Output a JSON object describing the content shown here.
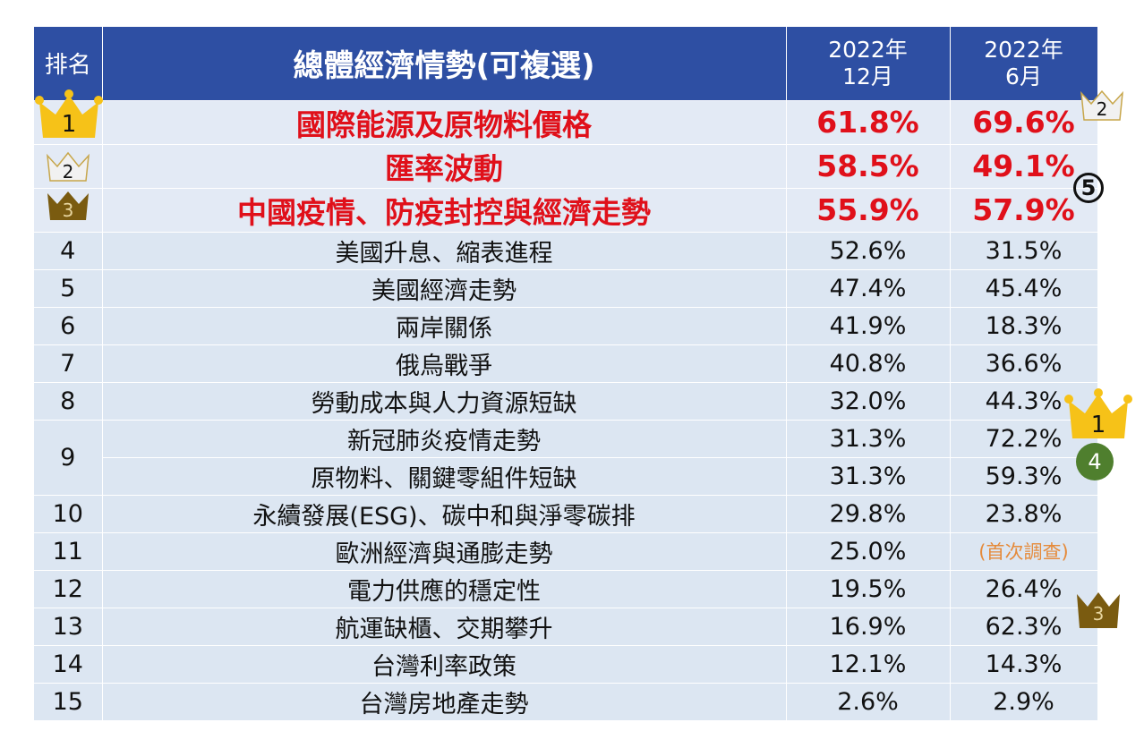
{
  "header": {
    "rank": "排名",
    "title": "總體經濟情勢(可複選)",
    "col_dec_year": "2022年",
    "col_dec_month": "12月",
    "col_jun_year": "2022年",
    "col_jun_month": "6月"
  },
  "rows": [
    {
      "rank": "1",
      "item": "國際能源及原物料價格",
      "dec": "61.8%",
      "jun": "69.6%"
    },
    {
      "rank": "2",
      "item": "匯率波動",
      "dec": "58.5%",
      "jun": "49.1%"
    },
    {
      "rank": "3",
      "item": "中國疫情、防疫封控與經濟走勢",
      "dec": "55.9%",
      "jun": "57.9%"
    },
    {
      "rank": "4",
      "item": "美國升息、縮表進程",
      "dec": "52.6%",
      "jun": "31.5%"
    },
    {
      "rank": "5",
      "item": "美國經濟走勢",
      "dec": "47.4%",
      "jun": "45.4%"
    },
    {
      "rank": "6",
      "item": "兩岸關係",
      "dec": "41.9%",
      "jun": "18.3%"
    },
    {
      "rank": "7",
      "item": "俄烏戰爭",
      "dec": "40.8%",
      "jun": "36.6%"
    },
    {
      "rank": "8",
      "item": "勞動成本與人力資源短缺",
      "dec": "32.0%",
      "jun": "44.3%"
    },
    {
      "rank": "9",
      "item": "新冠肺炎疫情走勢",
      "dec": "31.3%",
      "jun": "72.2%"
    },
    {
      "rank": "",
      "item": "原物料、關鍵零組件短缺",
      "dec": "31.3%",
      "jun": "59.3%"
    },
    {
      "rank": "10",
      "item": "永續發展(ESG)、碳中和與淨零碳排",
      "dec": "29.8%",
      "jun": "23.8%"
    },
    {
      "rank": "11",
      "item": "歐洲經濟與通膨走勢",
      "dec": "25.0%",
      "jun": "(首次調查)"
    },
    {
      "rank": "12",
      "item": "電力供應的穩定性",
      "dec": "19.5%",
      "jun": "26.4%"
    },
    {
      "rank": "13",
      "item": "航運缺櫃、交期攀升",
      "dec": "16.9%",
      "jun": "62.3%"
    },
    {
      "rank": "14",
      "item": "台灣利率政策",
      "dec": "12.1%",
      "jun": "14.3%"
    },
    {
      "rank": "15",
      "item": "台灣房地產走勢",
      "dec": "2.6%",
      "jun": "2.9%"
    }
  ],
  "markers": {
    "crown_gold": "1",
    "crown_silver": "2",
    "crown_bronze": "3",
    "circled_five": "5",
    "green_circle": "4"
  },
  "colors": {
    "header_bg": "#2e4fa3",
    "row_bg": "#dce6f2",
    "highlight_text": "#e0101a",
    "note_text": "#e58a3a",
    "gold": "#f6c218",
    "silver": "#f1f1f1",
    "bronze": "#7a5b10",
    "green": "#4f7f2e"
  },
  "icons": [
    "crown-gold-icon",
    "crown-silver-icon",
    "crown-bronze-icon"
  ]
}
